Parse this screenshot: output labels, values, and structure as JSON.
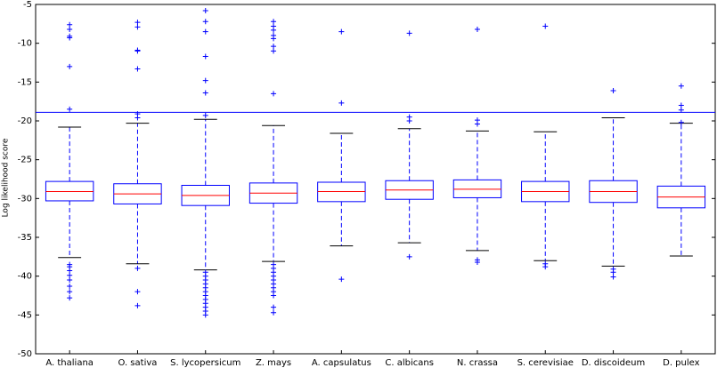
{
  "chart_data": {
    "type": "box",
    "y_label": "Log likelihood score",
    "categories": [
      "A. thaliana",
      "O. sativa",
      "S. lycopersicum",
      "Z. mays",
      "A. capsulatus",
      "C. albicans",
      "N. crassa",
      "S. cerevisiae",
      "D. discoideum",
      "D. pulex"
    ],
    "boxes": [
      {
        "whislo": -37.6,
        "q1": -30.3,
        "med": -29.1,
        "q3": -27.8,
        "whishi": -20.8,
        "fliers": [
          -7.6,
          -8.2,
          -9.1,
          -9.3,
          -13,
          -18.5,
          -38.5,
          -38.8,
          -39.3,
          -39.9,
          -40.5,
          -41.3,
          -42,
          -42.8
        ]
      },
      {
        "whislo": -38.4,
        "q1": -30.7,
        "med": -29.4,
        "q3": -28.1,
        "whishi": -20.3,
        "fliers": [
          -7.3,
          -7.9,
          -10.9,
          -11,
          -13.3,
          -19.1,
          -19.6,
          -39,
          -42,
          -43.8
        ]
      },
      {
        "whislo": -39.2,
        "q1": -30.9,
        "med": -29.6,
        "q3": -28.3,
        "whishi": -19.8,
        "fliers": [
          -5.8,
          -7.2,
          -8.5,
          -11.7,
          -14.8,
          -16.4,
          -19.3,
          -39.5,
          -40,
          -40.5,
          -41,
          -41.5,
          -42,
          -42.5,
          -43,
          -43.5,
          -44,
          -44.5,
          -45
        ]
      },
      {
        "whislo": -38.1,
        "q1": -30.6,
        "med": -29.3,
        "q3": -28,
        "whishi": -20.6,
        "fliers": [
          -7.2,
          -7.8,
          -8.3,
          -9,
          -9.4,
          -10.4,
          -11,
          -16.5,
          -38.5,
          -39,
          -39.5,
          -40,
          -40.5,
          -41,
          -41.5,
          -42,
          -42.5,
          -44,
          -44.7
        ]
      },
      {
        "whislo": -36.1,
        "q1": -30.4,
        "med": -29.1,
        "q3": -27.9,
        "whishi": -21.6,
        "fliers": [
          -8.5,
          -17.7,
          -40.4
        ]
      },
      {
        "whislo": -35.7,
        "q1": -30.1,
        "med": -28.9,
        "q3": -27.7,
        "whishi": -21,
        "fliers": [
          -8.7,
          -19.5,
          -20,
          -37.5
        ]
      },
      {
        "whislo": -36.7,
        "q1": -29.9,
        "med": -28.8,
        "q3": -27.6,
        "whishi": -21.3,
        "fliers": [
          -8.2,
          -19.9,
          -20.4,
          -37.9,
          -38.2
        ]
      },
      {
        "whislo": -38,
        "q1": -30.4,
        "med": -29.1,
        "q3": -27.8,
        "whishi": -21.4,
        "fliers": [
          -7.8,
          -38.4,
          -38.8
        ]
      },
      {
        "whislo": -38.7,
        "q1": -30.5,
        "med": -29.1,
        "q3": -27.7,
        "whishi": -19.6,
        "fliers": [
          -16.1,
          -39.1,
          -39.5,
          -40.1
        ]
      },
      {
        "whislo": -37.4,
        "q1": -31.2,
        "med": -29.8,
        "q3": -28.4,
        "whishi": -20.3,
        "fliers": [
          -15.5,
          -18,
          -18.6,
          -20.2
        ]
      }
    ],
    "box_color": "#0000ff",
    "median_color": "#ff0000",
    "cap_color": "#000000",
    "hline": -18.9,
    "hline_color": "#0000ff",
    "ylim": [
      -50,
      -5
    ],
    "yticks": [
      -50,
      -45,
      -40,
      -35,
      -30,
      -25,
      -20,
      -15,
      -10,
      -5
    ]
  }
}
